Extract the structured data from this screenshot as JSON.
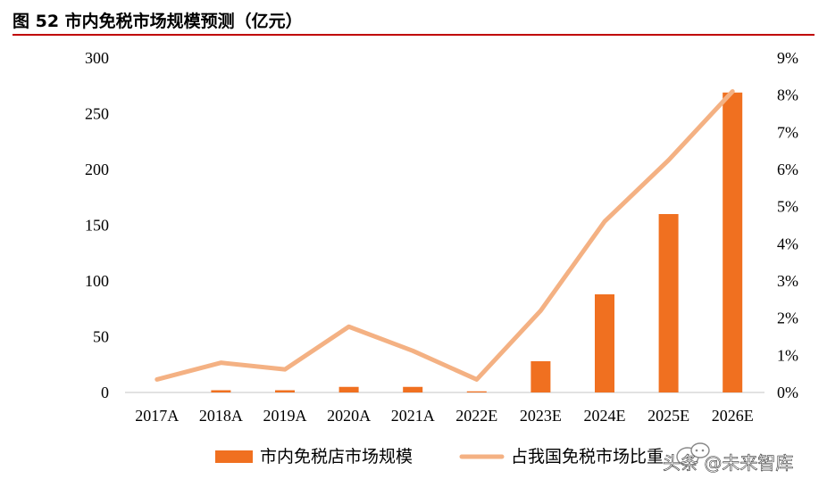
{
  "title": "图 52 市内免税市场规模预测（亿元）",
  "watermark": "头条 @未来智库",
  "chart_data": {
    "type": "bar",
    "categories": [
      "2017A",
      "2018A",
      "2019A",
      "2020A",
      "2021A",
      "2022E",
      "2023E",
      "2024E",
      "2025E",
      "2026E"
    ],
    "series": [
      {
        "name": "市内免税店市场规模",
        "type": "bar",
        "axis": "left",
        "color": "#F07020",
        "values": [
          0,
          2,
          2,
          5,
          5,
          1,
          28,
          88,
          160,
          269
        ]
      },
      {
        "name": "占我国免税市场比重",
        "type": "line",
        "axis": "right",
        "color": "#F4B183",
        "values": [
          0.35,
          0.8,
          0.62,
          1.77,
          1.12,
          0.35,
          2.2,
          4.6,
          6.25,
          8.1
        ]
      }
    ],
    "yleft": {
      "min": 0,
      "max": 300,
      "ticks": [
        "0",
        "50",
        "100",
        "150",
        "200",
        "250",
        "300"
      ]
    },
    "yright": {
      "min": 0,
      "max": 9,
      "ticks": [
        "0%",
        "1%",
        "2%",
        "3%",
        "4%",
        "5%",
        "6%",
        "7%",
        "8%",
        "9%"
      ]
    },
    "legend_position": "bottom",
    "grid": false
  }
}
